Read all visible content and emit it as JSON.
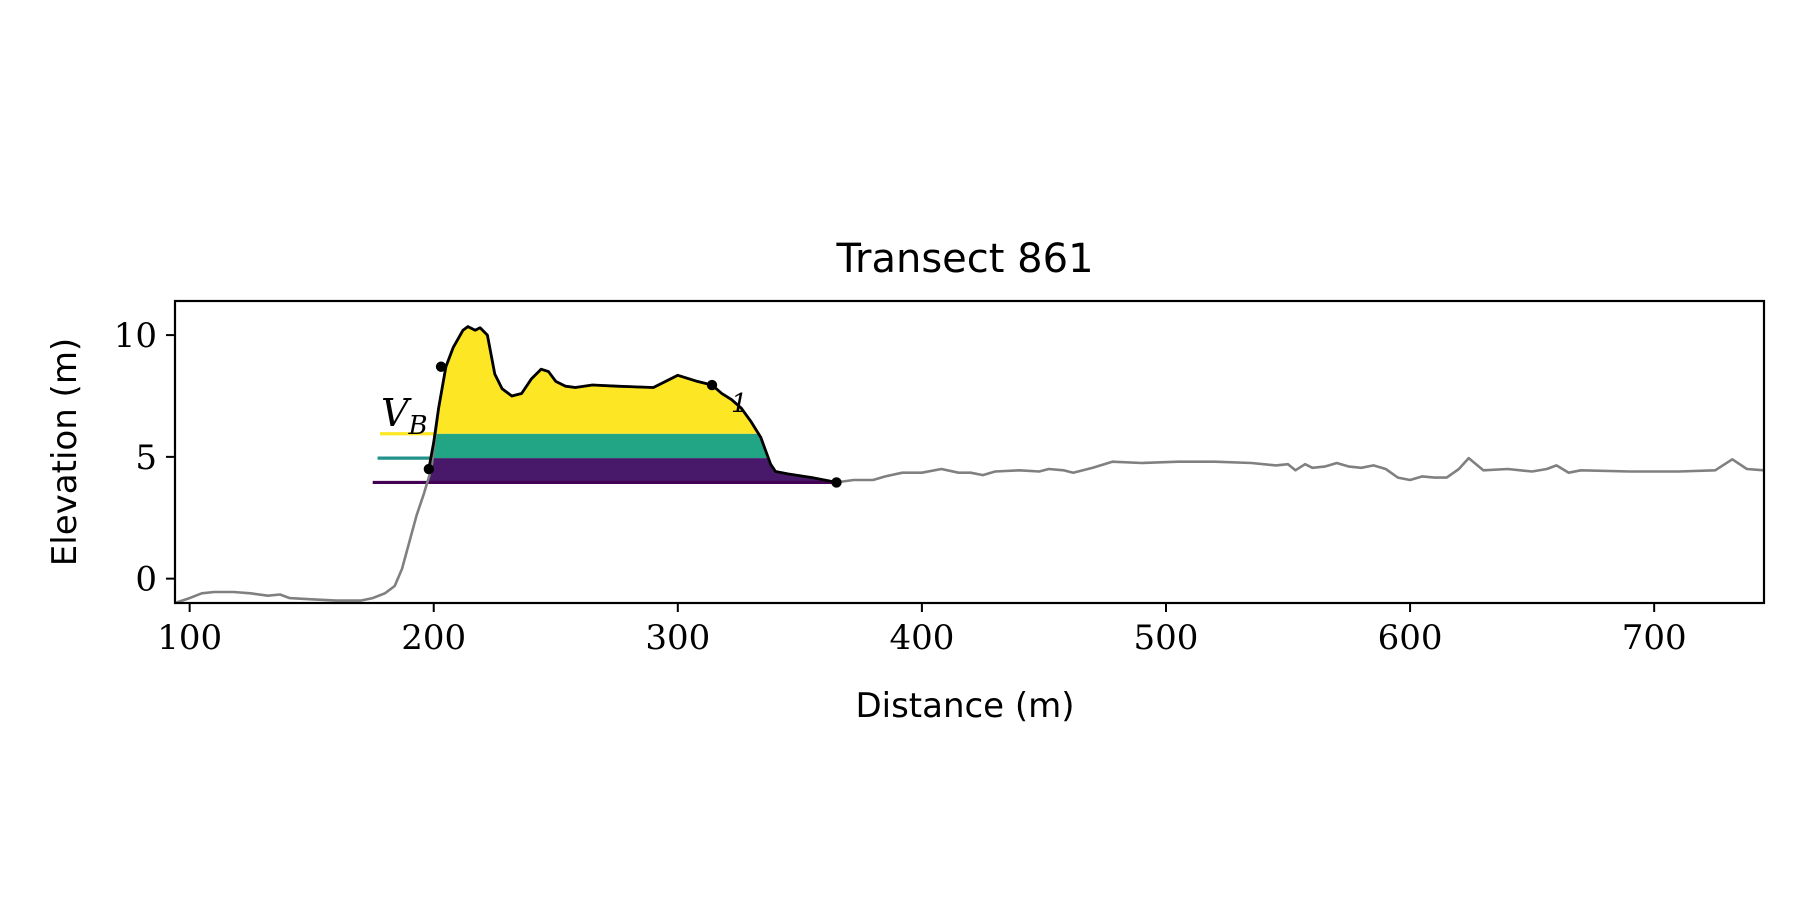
{
  "chart_data": {
    "type": "area",
    "title": "Transect 861",
    "xlabel": "Distance (m)",
    "ylabel": "Elevation (m)",
    "xlim": [
      94,
      745
    ],
    "ylim": [
      -1,
      11.4
    ],
    "xticks": [
      100,
      200,
      300,
      400,
      500,
      600,
      700
    ],
    "yticks": [
      0,
      5,
      10
    ],
    "grid": false,
    "legend": "none",
    "colors": {
      "profile": "#808080",
      "dune": "#000000",
      "fill_top": "#fde725",
      "fill_mid": "#21a585",
      "fill_low": "#48196b",
      "line_top": "#fde725",
      "line_mid": "#21918c",
      "line_low": "#440154"
    },
    "series": [
      {
        "x": [
          94,
          100,
          105,
          110,
          118,
          125,
          132,
          137,
          141,
          150,
          160,
          170,
          175,
          180,
          184,
          187,
          190,
          193,
          196,
          199,
          202,
          205,
          208,
          212,
          214,
          217,
          219,
          222,
          225,
          228,
          232,
          236,
          240,
          244,
          247,
          250,
          254,
          258,
          265,
          275,
          290,
          300,
          308,
          314,
          318,
          322,
          326,
          330,
          334,
          338,
          340,
          345,
          355,
          365,
          372,
          380,
          385,
          392,
          400,
          408,
          415,
          420,
          425,
          430,
          440,
          448,
          452,
          458,
          462,
          470,
          478,
          490,
          505,
          520,
          535,
          545,
          550,
          553,
          557,
          560,
          565,
          570,
          575,
          580,
          585,
          590,
          595,
          600,
          605,
          610,
          615,
          620,
          624,
          630,
          640,
          650,
          656,
          660,
          665,
          670,
          690,
          710,
          725,
          732,
          738,
          745
        ],
        "y": [
          -1.0,
          -0.8,
          -0.6,
          -0.55,
          -0.55,
          -0.6,
          -0.7,
          -0.65,
          -0.8,
          -0.85,
          -0.9,
          -0.9,
          -0.8,
          -0.6,
          -0.3,
          0.4,
          1.5,
          2.6,
          3.5,
          4.5,
          7.0,
          8.7,
          9.5,
          10.2,
          10.35,
          10.2,
          10.3,
          10.0,
          8.4,
          7.8,
          7.5,
          7.6,
          8.2,
          8.6,
          8.5,
          8.1,
          7.9,
          7.85,
          7.95,
          7.9,
          7.85,
          8.35,
          8.1,
          7.95,
          7.6,
          7.35,
          7.0,
          6.45,
          5.8,
          4.7,
          4.4,
          4.3,
          4.15,
          3.95,
          4.05,
          4.05,
          4.2,
          4.35,
          4.35,
          4.5,
          4.35,
          4.35,
          4.25,
          4.4,
          4.45,
          4.4,
          4.5,
          4.45,
          4.35,
          4.55,
          4.8,
          4.75,
          4.8,
          4.8,
          4.75,
          4.65,
          4.7,
          4.45,
          4.7,
          4.55,
          4.6,
          4.75,
          4.6,
          4.55,
          4.65,
          4.5,
          4.15,
          4.05,
          4.2,
          4.15,
          4.15,
          4.5,
          4.95,
          4.45,
          4.5,
          4.4,
          4.5,
          4.65,
          4.35,
          4.45,
          4.4,
          4.4,
          4.45,
          4.9,
          4.5,
          4.45
        ]
      },
      {
        "x": [
          198,
          200,
          202,
          205,
          208,
          212,
          214,
          217,
          219,
          222,
          225,
          228,
          232,
          236,
          240,
          244,
          247,
          250,
          254,
          258,
          265,
          275,
          290,
          300,
          308,
          314,
          318,
          322,
          326,
          330,
          334,
          338,
          340,
          345,
          355,
          365
        ],
        "y": [
          4.5,
          5.6,
          7.0,
          8.7,
          9.5,
          10.2,
          10.35,
          10.2,
          10.3,
          10.0,
          8.4,
          7.8,
          7.5,
          7.6,
          8.2,
          8.6,
          8.5,
          8.1,
          7.9,
          7.85,
          7.95,
          7.9,
          7.85,
          8.35,
          8.1,
          7.95,
          7.6,
          7.35,
          7.0,
          6.45,
          5.8,
          4.7,
          4.4,
          4.3,
          4.15,
          3.95
        ]
      }
    ],
    "levels": [
      {
        "y": 5.95,
        "x_from": 178
      },
      {
        "y": 4.95,
        "x_from": 177
      },
      {
        "y": 3.95,
        "x_from": 175
      }
    ],
    "points": [
      {
        "x": 203,
        "y": 8.7
      },
      {
        "x": 314,
        "y": 7.95
      },
      {
        "x": 198,
        "y": 4.5
      },
      {
        "x": 365,
        "y": 3.95
      }
    ],
    "annotations": {
      "volume_main": "V",
      "volume_sub": "B",
      "point_label": "1"
    }
  }
}
